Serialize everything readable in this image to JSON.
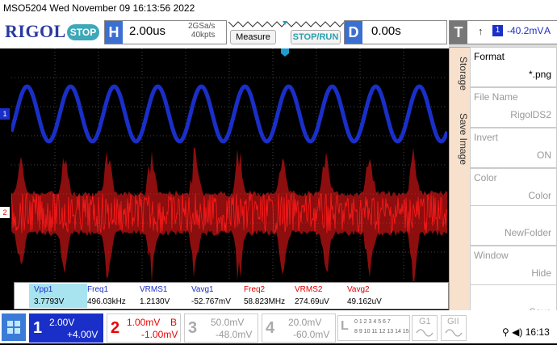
{
  "header": {
    "model_datetime": "MSO5204  Wed November 09 16:13:56 2022",
    "logo": "RIGOL",
    "state": "STOP",
    "horizontal": {
      "letter": "H",
      "value": "2.00us",
      "sample_rate": "2GSa/s",
      "memory": "40kpts"
    },
    "measure_label": "Measure",
    "stoprun_label": "STOP/RUN",
    "delay": {
      "letter": "D",
      "value": "0.00s"
    },
    "trigger": {
      "letter": "T",
      "slope": "↑",
      "channel": "1",
      "level": "-40.2mV",
      "coupling": "A"
    }
  },
  "channels": {
    "ch1": {
      "marker": "1",
      "color": "#1a2fc8"
    },
    "ch2": {
      "marker": "2",
      "color": "#ff1a1a"
    }
  },
  "measurements": [
    {
      "label": "Vpp1",
      "value": "3.7793V",
      "color": "#1a2fc8",
      "highlight": true
    },
    {
      "label": "Freq1",
      "value": "496.03kHz",
      "color": "#1a2fc8"
    },
    {
      "label": "VRMS1",
      "value": "1.2130V",
      "color": "#1a2fc8"
    },
    {
      "label": "Vavg1",
      "value": "-52.767mV",
      "color": "#1a2fc8"
    },
    {
      "label": "Freq2",
      "value": "58.823MHz",
      "color": "#e00000"
    },
    {
      "label": "VRMS2",
      "value": "274.69uV",
      "color": "#e00000"
    },
    {
      "label": "Vavg2",
      "value": "49.162uV",
      "color": "#e00000"
    }
  ],
  "side_panel": {
    "tabs": [
      "Storage",
      "Save Image"
    ],
    "items": [
      {
        "label": "Format",
        "value": "*.png",
        "dim": false
      },
      {
        "label": "File Name",
        "value": "RigolDS2",
        "dim": true
      },
      {
        "label": "Invert",
        "value": "ON",
        "dim": true
      },
      {
        "label": "Color",
        "value": "Color",
        "dim": true
      },
      {
        "label": "",
        "value": "NewFolder",
        "dim": true
      },
      {
        "label": "Window",
        "value": "Hide",
        "dim": true
      },
      {
        "label": "",
        "value": "Save",
        "dim": true
      }
    ]
  },
  "bottom": {
    "channels": [
      {
        "num": "1",
        "scale": "2.00V",
        "offset": "+4.00V",
        "extra": "",
        "color": "#1a2fc8",
        "active": true
      },
      {
        "num": "2",
        "scale": "1.00mV",
        "offset": "-1.00mV",
        "extra": "B",
        "color": "#e00000",
        "active": false
      },
      {
        "num": "3",
        "scale": "50.0mV",
        "offset": "-48.0mV",
        "extra": "",
        "color": "#999999",
        "active": false
      },
      {
        "num": "4",
        "scale": "20.0mV",
        "offset": "-60.0mV",
        "extra": "",
        "color": "#999999",
        "active": false
      }
    ],
    "logic": {
      "letter": "L",
      "row1": "0 1 2 3 4 5 6 7",
      "row2": "8 9 10 11 12 13 14 15"
    },
    "generators": [
      "G1",
      "GII"
    ],
    "time": "16:13"
  }
}
